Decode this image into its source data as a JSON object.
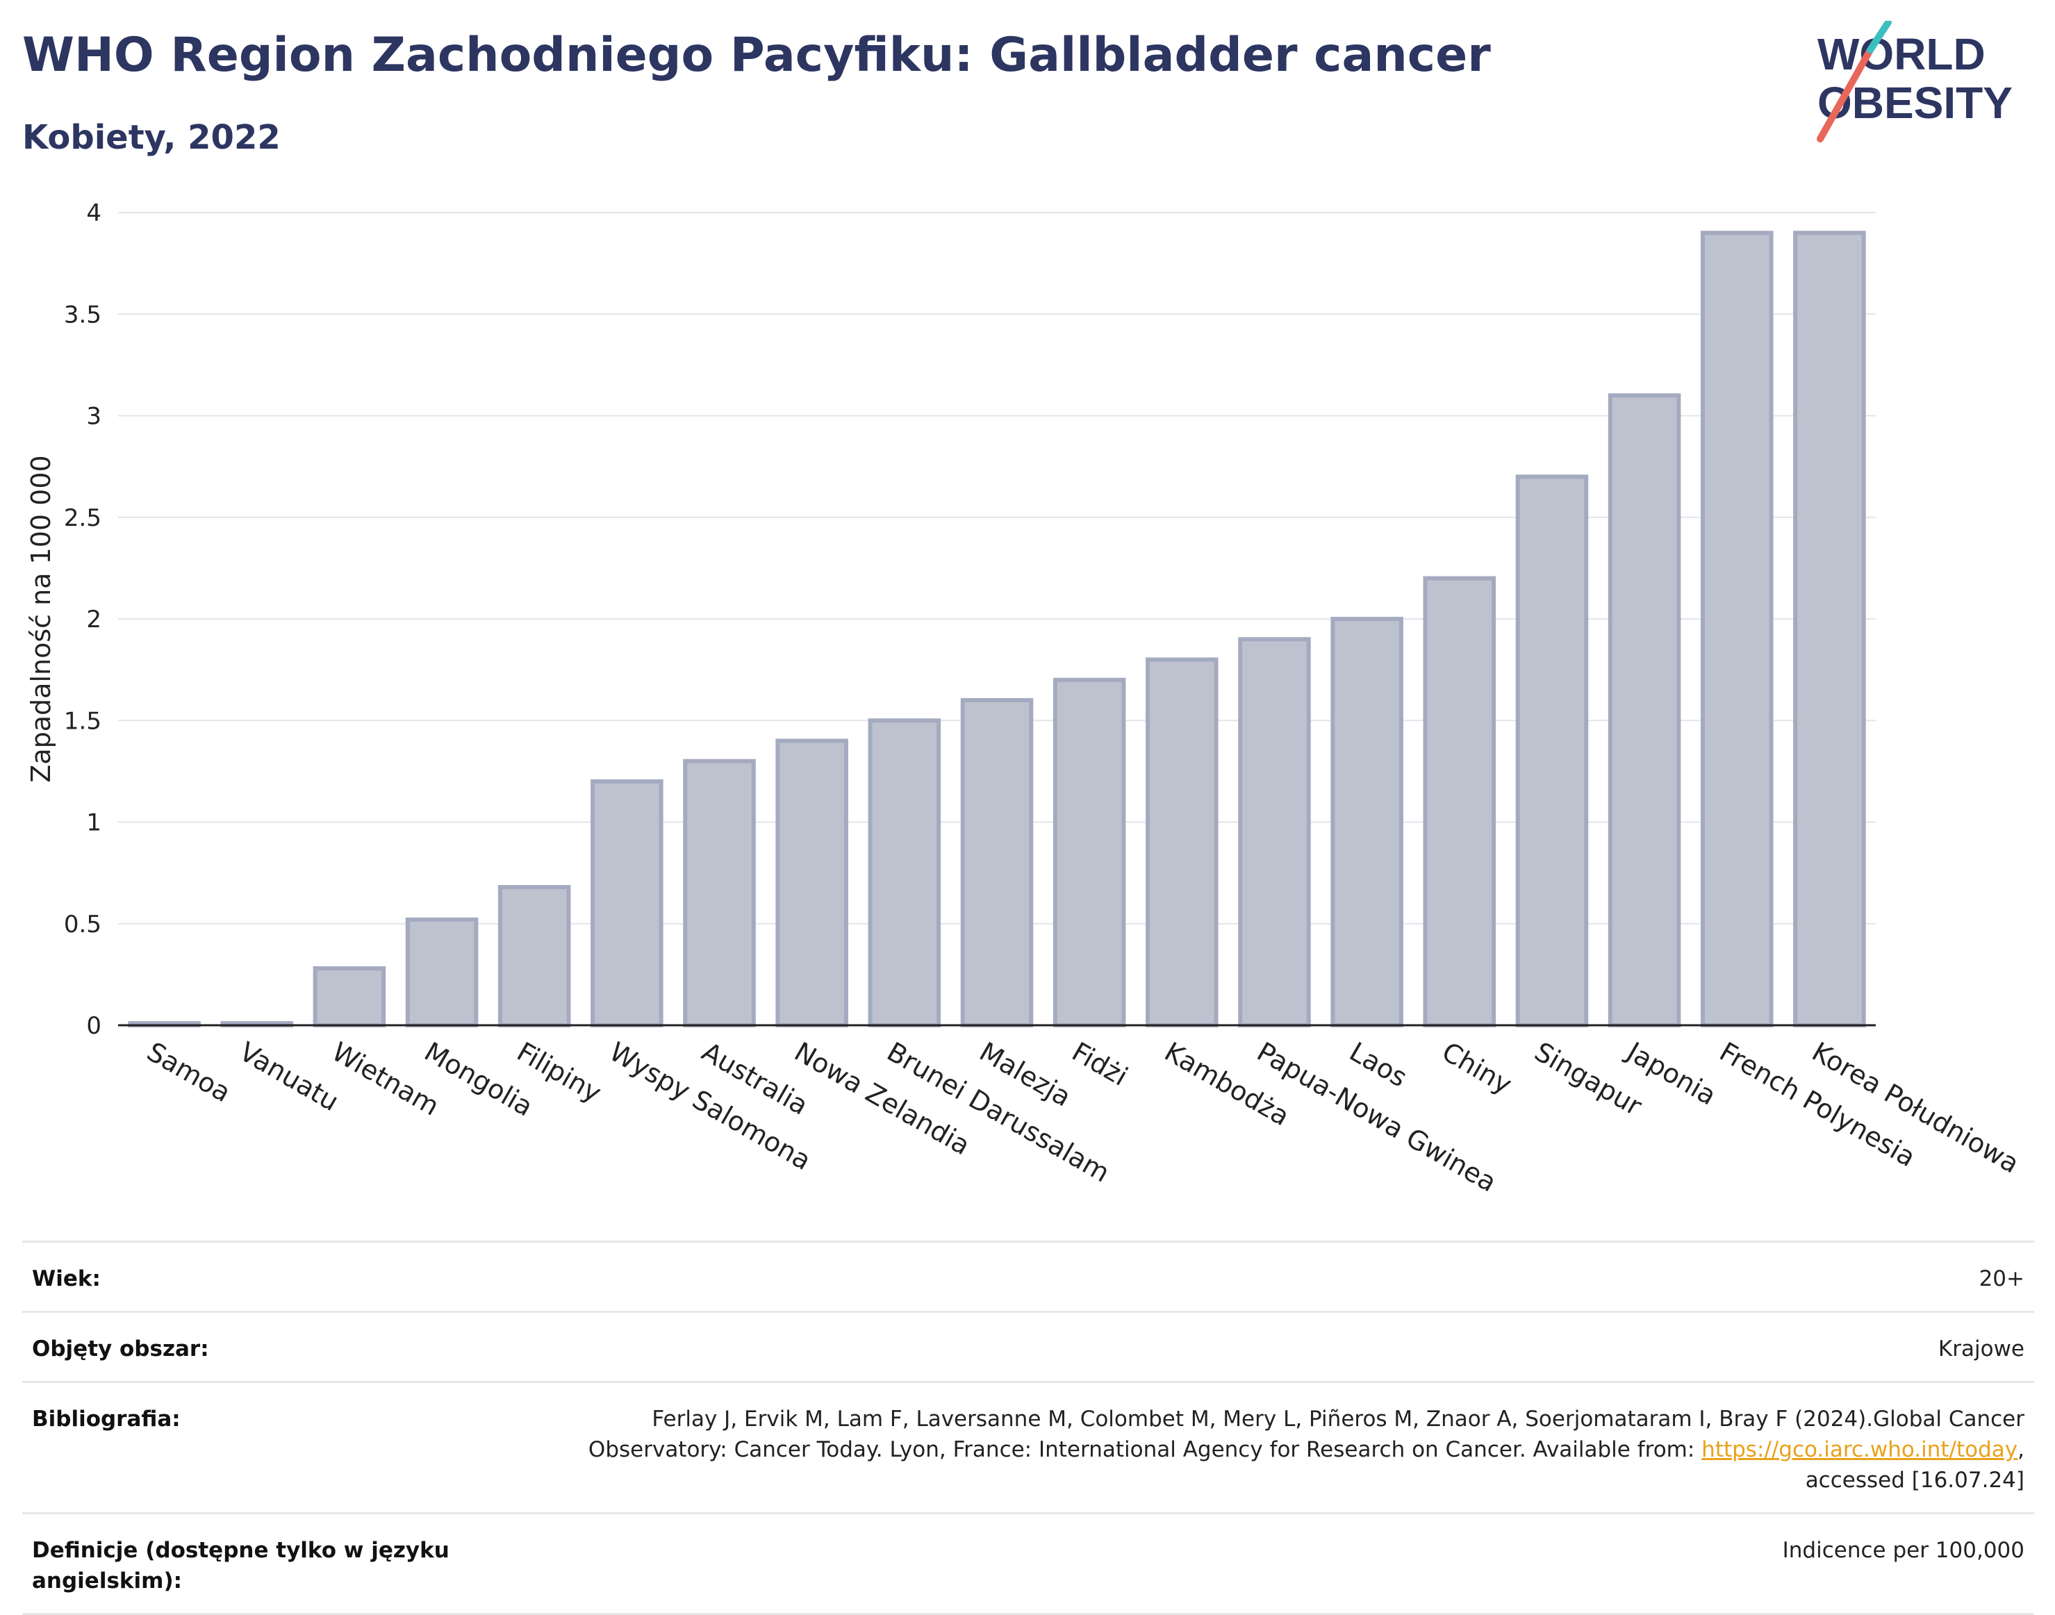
{
  "header": {
    "title": "WHO Region Zachodniego Pacyfiku: Gallbladder cancer",
    "subtitle": "Kobiety, 2022",
    "logo_line1": "WORLD",
    "logo_line2": "OBESITY"
  },
  "colors": {
    "title": "#2d3561",
    "bar_fill": "#bec2cf",
    "bar_stroke": "#a4aac0",
    "grid": "#e4e4ea",
    "logo_text": "#2d3561",
    "logo_slash_red": "#e8675a",
    "logo_slash_teal": "#3bbfbf",
    "link": "#e8a21b"
  },
  "chart_data": {
    "type": "bar",
    "title": "WHO Region Zachodniego Pacyfiku: Gallbladder cancer",
    "subtitle": "Kobiety, 2022",
    "xlabel": "",
    "ylabel": "Zapadalność na 100 000",
    "ylim": [
      0,
      4
    ],
    "yticks": [
      0,
      0.5,
      1,
      1.5,
      2,
      2.5,
      3,
      3.5,
      4
    ],
    "ytick_labels": [
      "0",
      "0.5",
      "1",
      "1.5",
      "2",
      "2.5",
      "3",
      "3.5",
      "4"
    ],
    "grid": true,
    "categories": [
      "Samoa",
      "Vanuatu",
      "Wietnam",
      "Mongolia",
      "Filipiny",
      "Wyspy Salomona",
      "Australia",
      "Nowa Zelandia",
      "Brunei Darussalam",
      "Malezja",
      "Fidżi",
      "Kambodża",
      "Papua-Nowa Gwinea",
      "Laos",
      "Chiny",
      "Singapur",
      "Japonia",
      "French Polynesia",
      "Korea Południowa"
    ],
    "values": [
      0.01,
      0.01,
      0.28,
      0.52,
      0.68,
      1.2,
      1.3,
      1.4,
      1.5,
      1.6,
      1.7,
      1.8,
      1.9,
      2.0,
      2.2,
      2.7,
      3.1,
      3.9,
      3.9
    ]
  },
  "meta": {
    "rows": [
      {
        "key": "Wiek:",
        "value": "20+"
      },
      {
        "key": "Objęty obszar:",
        "value": "Krajowe"
      },
      {
        "key": "Bibliografia:",
        "value_pre": "Ferlay J, Ervik M, Lam F, Laversanne M, Colombet M, Mery L, Piñeros M, Znaor A, Soerjomataram I, Bray F (2024).Global Cancer Observatory: Cancer Today. Lyon, France: International Agency for Research on Cancer. Available from: ",
        "link": "https://gco.iarc.who.int/today",
        "value_post": ", accessed [16.07.24]"
      },
      {
        "key": "Definicje (dostępne tylko w języku angielskim):",
        "value": "Indicence per 100,000"
      }
    ]
  }
}
